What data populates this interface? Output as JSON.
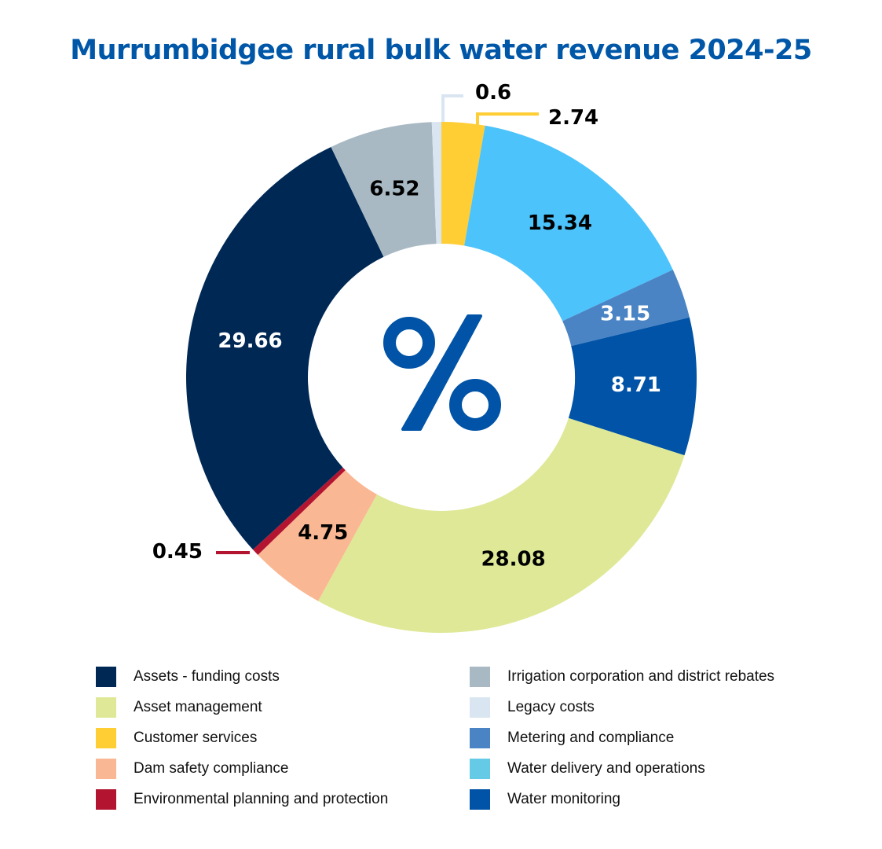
{
  "chart_data": {
    "type": "pie",
    "donut": true,
    "title": "Murrumbidgee rural bulk water revenue 2024-25",
    "center_label": "%",
    "start": "12 o'clock, clockwise",
    "slices": [
      {
        "label": "Customer services",
        "value": 2.74,
        "color": "#FFCD34",
        "text_color": "#000000",
        "leader": true
      },
      {
        "label": "Water delivery and operations",
        "value": 15.34,
        "color": "#4CC3FB",
        "text_color": "#000000"
      },
      {
        "label": "Metering and compliance",
        "value": 3.15,
        "color": "#4A84C4",
        "text_color": "#FFFFFF"
      },
      {
        "label": "Water monitoring",
        "value": 8.71,
        "color": "#0053A6",
        "text_color": "#FFFFFF"
      },
      {
        "label": "Asset management",
        "value": 28.08,
        "color": "#DFE896",
        "text_color": "#000000"
      },
      {
        "label": "Dam safety compliance",
        "value": 4.75,
        "color": "#F9B893",
        "text_color": "#000000"
      },
      {
        "label": "Environmental planning and protection",
        "value": 0.45,
        "color": "#B31531",
        "text_color": "#000000",
        "leader": true
      },
      {
        "label": "Assets - funding costs",
        "value": 29.66,
        "color": "#002855",
        "text_color": "#FFFFFF"
      },
      {
        "label": "Irrigation corporation and district rebates",
        "value": 6.52,
        "color": "#A8B9C3",
        "text_color": "#000000"
      },
      {
        "label": "Legacy costs",
        "value": 0.6,
        "color": "#D9E6F2",
        "text_color": "#000000",
        "leader": true
      }
    ],
    "legend_placement": "bottom",
    "legend": [
      {
        "label": "Assets - funding costs",
        "color": "#002855"
      },
      {
        "label": "Asset management",
        "color": "#DFE896"
      },
      {
        "label": "Customer services",
        "color": "#FFCD34"
      },
      {
        "label": "Dam safety compliance",
        "color": "#F9B893"
      },
      {
        "label": "Environmental planning and protection",
        "color": "#B31531"
      },
      {
        "label": "Irrigation corporation and district rebates",
        "color": "#A8B9C3"
      },
      {
        "label": "Legacy costs",
        "color": "#D9E6F2"
      },
      {
        "label": "Metering and compliance",
        "color": "#4A84C4"
      },
      {
        "label": "Water delivery and operations",
        "color": "#64CAE6"
      },
      {
        "label": "Water monitoring",
        "color": "#0053A6"
      }
    ]
  },
  "colors": {
    "title": "#0057A8",
    "center_symbol": "#0053A6"
  }
}
